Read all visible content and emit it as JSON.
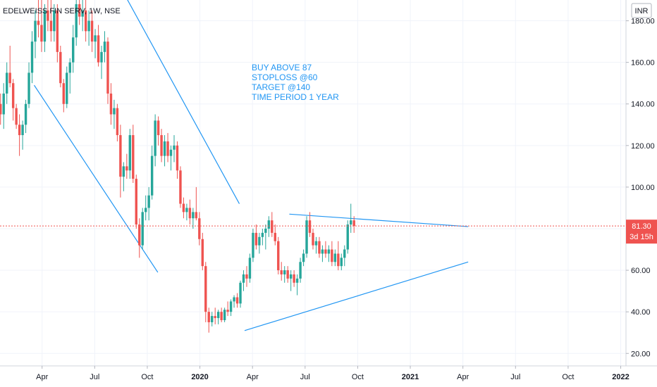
{
  "header": {
    "symbol": "EDELWEISS FIN SERV, 1W, NSE",
    "currency": "INR"
  },
  "price_label": {
    "value": "81.30",
    "countdown": "3d 15h"
  },
  "annotation": [
    "BUY ABOVE 87",
    "STOPLOSS @60",
    "TARGET @140",
    "TIME PERIOD 1 YEAR"
  ],
  "colors": {
    "up": "#26a69a",
    "down": "#ef5350",
    "line": "#2196f3",
    "price": "#ef5350"
  },
  "chart_data": {
    "type": "candlestick",
    "y_ticks": [
      "20.00",
      "40.00",
      "60.00",
      "80.00",
      "100.00",
      "120.00",
      "140.00",
      "160.00",
      "180.00"
    ],
    "x_ticks": [
      {
        "label": "Apr",
        "t": 1.0,
        "bold": false
      },
      {
        "label": "Jul",
        "t": 2.0,
        "bold": false
      },
      {
        "label": "Oct",
        "t": 3.0,
        "bold": false
      },
      {
        "label": "2020",
        "t": 4.0,
        "bold": true
      },
      {
        "label": "Apr",
        "t": 5.0,
        "bold": false
      },
      {
        "label": "Jul",
        "t": 6.0,
        "bold": false
      },
      {
        "label": "Oct",
        "t": 7.0,
        "bold": false
      },
      {
        "label": "2021",
        "t": 8.0,
        "bold": true
      },
      {
        "label": "Apr",
        "t": 9.0,
        "bold": false
      },
      {
        "label": "Jul",
        "t": 10.0,
        "bold": false
      },
      {
        "label": "Oct",
        "t": 11.0,
        "bold": false
      },
      {
        "label": "2022",
        "t": 12.0,
        "bold": true
      }
    ],
    "y_range": [
      14,
      190
    ],
    "x_range": [
      0.2,
      12.1
    ],
    "last_price": 81.3,
    "trendlines": [
      {
        "from": [
          2.3,
          205
        ],
        "to": [
          4.75,
          92
        ]
      },
      {
        "from": [
          0.85,
          149
        ],
        "to": [
          3.2,
          59
        ]
      },
      {
        "from": [
          4.85,
          31
        ],
        "to": [
          9.1,
          64
        ]
      },
      {
        "from": [
          5.7,
          87
        ],
        "to": [
          9.1,
          81
        ]
      }
    ],
    "ohlc": [
      [
        0.21,
        140,
        145,
        130,
        135
      ],
      [
        0.27,
        135,
        150,
        128,
        145
      ],
      [
        0.33,
        145,
        160,
        140,
        155
      ],
      [
        0.39,
        155,
        168,
        148,
        150
      ],
      [
        0.45,
        150,
        152,
        132,
        138
      ],
      [
        0.51,
        138,
        140,
        128,
        130
      ],
      [
        0.57,
        130,
        135,
        115,
        125
      ],
      [
        0.63,
        125,
        132,
        118,
        130
      ],
      [
        0.69,
        130,
        142,
        126,
        140
      ],
      [
        0.75,
        140,
        160,
        138,
        155
      ],
      [
        0.81,
        155,
        175,
        150,
        170
      ],
      [
        0.87,
        170,
        185,
        162,
        180
      ],
      [
        0.93,
        180,
        192,
        172,
        178
      ],
      [
        0.99,
        178,
        190,
        165,
        170
      ],
      [
        1.05,
        170,
        188,
        165,
        185
      ],
      [
        1.11,
        185,
        192,
        175,
        180
      ],
      [
        1.17,
        180,
        190,
        170,
        175
      ],
      [
        1.23,
        175,
        188,
        170,
        185
      ],
      [
        1.29,
        185,
        188,
        160,
        165
      ],
      [
        1.35,
        165,
        168,
        148,
        150
      ],
      [
        1.41,
        150,
        152,
        136,
        140
      ],
      [
        1.47,
        140,
        158,
        138,
        155
      ],
      [
        1.53,
        155,
        162,
        145,
        160
      ],
      [
        1.59,
        160,
        178,
        155,
        172
      ],
      [
        1.65,
        172,
        192,
        168,
        188
      ],
      [
        1.71,
        188,
        195,
        178,
        182
      ],
      [
        1.77,
        182,
        190,
        175,
        185
      ],
      [
        1.83,
        185,
        190,
        170,
        175
      ],
      [
        1.89,
        175,
        185,
        168,
        180
      ],
      [
        1.95,
        180,
        185,
        165,
        170
      ],
      [
        2.01,
        170,
        176,
        162,
        173
      ],
      [
        2.07,
        173,
        178,
        158,
        160
      ],
      [
        2.13,
        160,
        168,
        152,
        165
      ],
      [
        2.19,
        165,
        175,
        160,
        170
      ],
      [
        2.25,
        170,
        172,
        140,
        145
      ],
      [
        2.31,
        145,
        150,
        130,
        135
      ],
      [
        2.37,
        135,
        142,
        128,
        138
      ],
      [
        2.43,
        138,
        140,
        122,
        125
      ],
      [
        2.49,
        125,
        130,
        95,
        105
      ],
      [
        2.55,
        105,
        112,
        98,
        110
      ],
      [
        2.61,
        110,
        116,
        104,
        108
      ],
      [
        2.67,
        108,
        128,
        104,
        125
      ],
      [
        2.73,
        125,
        130,
        102,
        104
      ],
      [
        2.79,
        104,
        106,
        80,
        82
      ],
      [
        2.85,
        82,
        85,
        66,
        72
      ],
      [
        2.91,
        72,
        90,
        70,
        88
      ],
      [
        2.97,
        88,
        96,
        84,
        90
      ],
      [
        3.03,
        90,
        100,
        84,
        96
      ],
      [
        3.09,
        96,
        120,
        94,
        115
      ],
      [
        3.15,
        115,
        135,
        110,
        132
      ],
      [
        3.21,
        132,
        134,
        120,
        125
      ],
      [
        3.27,
        125,
        128,
        112,
        115
      ],
      [
        3.33,
        115,
        125,
        110,
        122
      ],
      [
        3.39,
        122,
        126,
        112,
        115
      ],
      [
        3.45,
        115,
        120,
        108,
        118
      ],
      [
        3.51,
        118,
        125,
        112,
        120
      ],
      [
        3.57,
        120,
        122,
        104,
        108
      ],
      [
        3.63,
        108,
        110,
        90,
        92
      ],
      [
        3.69,
        92,
        95,
        85,
        88
      ],
      [
        3.75,
        88,
        92,
        84,
        90
      ],
      [
        3.81,
        90,
        94,
        82,
        85
      ],
      [
        3.87,
        85,
        90,
        80,
        88
      ],
      [
        3.93,
        88,
        100,
        84,
        85
      ],
      [
        3.99,
        85,
        88,
        72,
        75
      ],
      [
        4.05,
        75,
        78,
        60,
        62
      ],
      [
        4.11,
        62,
        64,
        35,
        40
      ],
      [
        4.17,
        40,
        42,
        30,
        35
      ],
      [
        4.23,
        35,
        40,
        33,
        38
      ],
      [
        4.29,
        38,
        42,
        34,
        37
      ],
      [
        4.35,
        37,
        41,
        34,
        40
      ],
      [
        4.41,
        40,
        42,
        35,
        36
      ],
      [
        4.47,
        36,
        42,
        35,
        41
      ],
      [
        4.53,
        41,
        45,
        38,
        40
      ],
      [
        4.59,
        40,
        46,
        38,
        45
      ],
      [
        4.65,
        45,
        48,
        42,
        47
      ],
      [
        4.71,
        47,
        49,
        42,
        44
      ],
      [
        4.77,
        44,
        55,
        42,
        54
      ],
      [
        4.83,
        54,
        60,
        50,
        58
      ],
      [
        4.89,
        58,
        62,
        52,
        56
      ],
      [
        4.95,
        56,
        68,
        54,
        66
      ],
      [
        5.01,
        66,
        80,
        64,
        78
      ],
      [
        5.07,
        78,
        82,
        70,
        72
      ],
      [
        5.13,
        72,
        78,
        68,
        76
      ],
      [
        5.19,
        76,
        80,
        72,
        78
      ],
      [
        5.25,
        78,
        82,
        70,
        80
      ],
      [
        5.31,
        80,
        86,
        76,
        84
      ],
      [
        5.37,
        84,
        88,
        76,
        78
      ],
      [
        5.43,
        78,
        82,
        72,
        74
      ],
      [
        5.49,
        74,
        76,
        58,
        60
      ],
      [
        5.55,
        60,
        64,
        55,
        58
      ],
      [
        5.61,
        58,
        62,
        54,
        60
      ],
      [
        5.67,
        60,
        62,
        54,
        56
      ],
      [
        5.73,
        56,
        60,
        50,
        58
      ],
      [
        5.79,
        58,
        60,
        52,
        54
      ],
      [
        5.85,
        54,
        58,
        48,
        56
      ],
      [
        5.91,
        56,
        66,
        54,
        64
      ],
      [
        5.97,
        64,
        70,
        62,
        68
      ],
      [
        6.03,
        68,
        86,
        66,
        84
      ],
      [
        6.09,
        84,
        88,
        76,
        78
      ],
      [
        6.15,
        78,
        80,
        70,
        72
      ],
      [
        6.21,
        72,
        76,
        68,
        74
      ],
      [
        6.27,
        74,
        76,
        66,
        68
      ],
      [
        6.33,
        68,
        72,
        64,
        70
      ],
      [
        6.39,
        70,
        74,
        66,
        68
      ],
      [
        6.45,
        68,
        72,
        64,
        70
      ],
      [
        6.51,
        70,
        74,
        62,
        64
      ],
      [
        6.57,
        64,
        70,
        62,
        68
      ],
      [
        6.63,
        68,
        74,
        60,
        62
      ],
      [
        6.69,
        62,
        68,
        60,
        66
      ],
      [
        6.75,
        66,
        72,
        62,
        70
      ],
      [
        6.81,
        70,
        84,
        68,
        82
      ],
      [
        6.87,
        82,
        92,
        78,
        84
      ],
      [
        6.93,
        84,
        86,
        78,
        81.3
      ]
    ]
  }
}
